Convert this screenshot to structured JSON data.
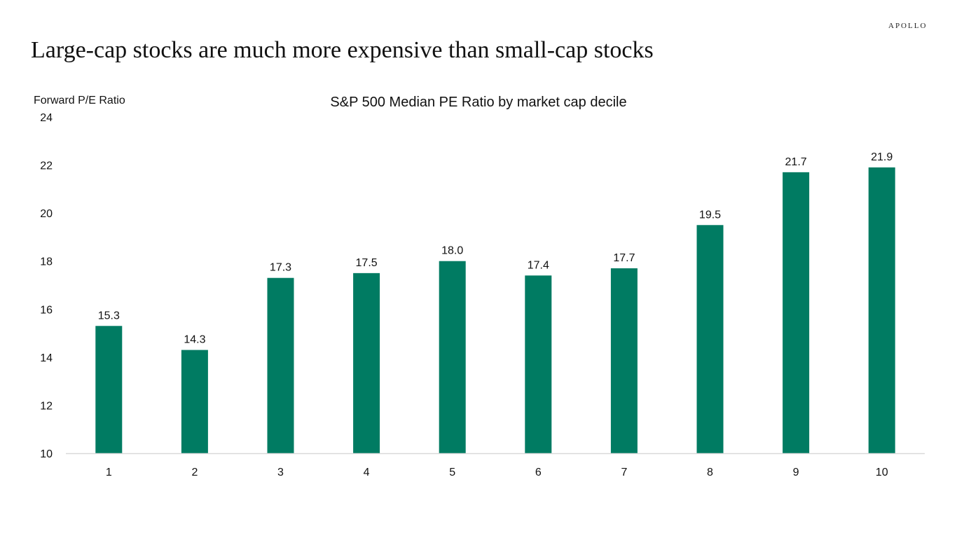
{
  "brand": "APOLLO",
  "headline": "Large-cap stocks are much more expensive than small-cap stocks",
  "chart_data": {
    "type": "bar",
    "title": "S&P 500 Median PE Ratio by market cap decile",
    "xlabel": "",
    "ylabel": "Forward P/E Ratio",
    "categories": [
      "1",
      "2",
      "3",
      "4",
      "5",
      "6",
      "7",
      "8",
      "9",
      "10"
    ],
    "values": [
      15.3,
      14.3,
      17.3,
      17.5,
      18.0,
      17.4,
      17.7,
      19.5,
      21.7,
      21.9
    ],
    "value_labels": [
      "15.3",
      "14.3",
      "17.3",
      "17.5",
      "18.0",
      "17.4",
      "17.7",
      "19.5",
      "21.7",
      "21.9"
    ],
    "ylim": [
      10,
      24
    ],
    "yticks": [
      "10",
      "12",
      "14",
      "16",
      "18",
      "20",
      "22",
      "24"
    ],
    "grid": false,
    "legend": "none",
    "bar_color": "#007B62",
    "axis_color": "#D9D9D9"
  }
}
